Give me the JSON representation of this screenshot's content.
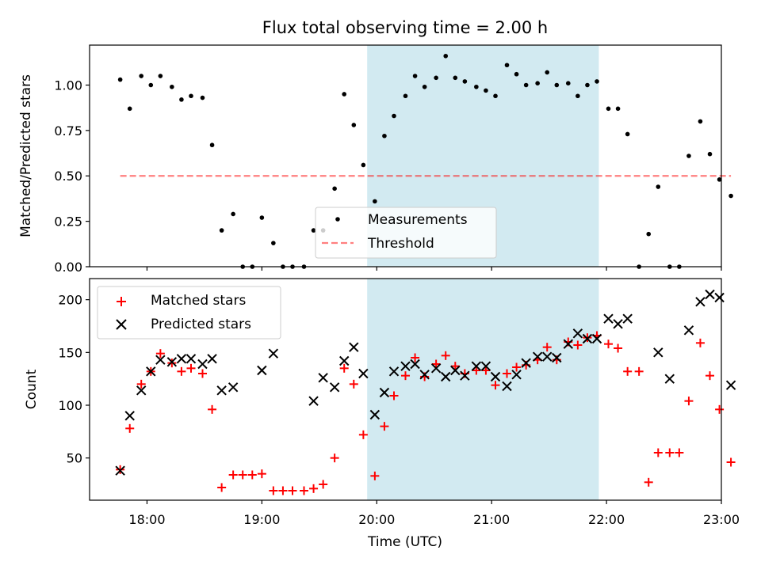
{
  "title": "Flux total observing time = 2.00 h",
  "colors": {
    "highlight": "#add8e6",
    "threshold": "#ff0000",
    "measurements": "#000000",
    "matched": "#ff0000",
    "predicted": "#000000"
  },
  "chart_data": [
    {
      "type": "scatter",
      "ylabel": "Matched/Predicted stars",
      "xlim": [
        17.5,
        23.0
      ],
      "ylim": [
        0,
        1.22
      ],
      "yticks": [
        {
          "value": 0.0,
          "label": "0.00"
        },
        {
          "value": 0.25,
          "label": "0.25"
        },
        {
          "value": 0.5,
          "label": "0.50"
        },
        {
          "value": 0.75,
          "label": "0.75"
        },
        {
          "value": 1.0,
          "label": "1.00"
        }
      ],
      "highlight_span": [
        "19:55",
        "21:56"
      ],
      "legend": {
        "placement": "bottom-center",
        "entries": [
          "Measurements",
          "Threshold"
        ]
      },
      "series": [
        {
          "name": "Measurements",
          "marker": "dot",
          "points": [
            [
              "17:46",
              1.03
            ],
            [
              "17:51",
              0.87
            ],
            [
              "17:57",
              1.05
            ],
            [
              "18:02",
              1.0
            ],
            [
              "18:07",
              1.05
            ],
            [
              "18:13",
              0.99
            ],
            [
              "18:18",
              0.92
            ],
            [
              "18:23",
              0.94
            ],
            [
              "18:29",
              0.93
            ],
            [
              "18:34",
              0.67
            ],
            [
              "18:39",
              0.2
            ],
            [
              "18:45",
              0.29
            ],
            [
              "18:50",
              0.0
            ],
            [
              "18:55",
              0.0
            ],
            [
              "19:00",
              0.27
            ],
            [
              "19:06",
              0.13
            ],
            [
              "19:11",
              0.0
            ],
            [
              "19:16",
              0.0
            ],
            [
              "19:22",
              0.0
            ],
            [
              "19:27",
              0.2
            ],
            [
              "19:32",
              0.2
            ],
            [
              "19:38",
              0.43
            ],
            [
              "19:43",
              0.95
            ],
            [
              "19:48",
              0.78
            ],
            [
              "19:53",
              0.56
            ],
            [
              "19:59",
              0.36
            ],
            [
              "20:04",
              0.72
            ],
            [
              "20:09",
              0.83
            ],
            [
              "20:15",
              0.94
            ],
            [
              "20:20",
              1.05
            ],
            [
              "20:25",
              0.99
            ],
            [
              "20:31",
              1.04
            ],
            [
              "20:36",
              1.16
            ],
            [
              "20:41",
              1.04
            ],
            [
              "20:46",
              1.02
            ],
            [
              "20:52",
              0.99
            ],
            [
              "20:57",
              0.97
            ],
            [
              "21:02",
              0.94
            ],
            [
              "21:08",
              1.11
            ],
            [
              "21:13",
              1.06
            ],
            [
              "21:18",
              1.0
            ],
            [
              "21:24",
              1.01
            ],
            [
              "21:29",
              1.07
            ],
            [
              "21:34",
              1.0
            ],
            [
              "21:40",
              1.01
            ],
            [
              "21:45",
              0.94
            ],
            [
              "21:50",
              1.0
            ],
            [
              "21:55",
              1.02
            ],
            [
              "22:01",
              0.87
            ],
            [
              "22:06",
              0.87
            ],
            [
              "22:11",
              0.73
            ],
            [
              "22:17",
              0.0
            ],
            [
              "22:22",
              0.18
            ],
            [
              "22:27",
              0.44
            ],
            [
              "22:33",
              0.0
            ],
            [
              "22:38",
              0.0
            ],
            [
              "22:43",
              0.61
            ],
            [
              "22:49",
              0.8
            ],
            [
              "22:54",
              0.62
            ],
            [
              "22:59",
              0.48
            ],
            [
              "23:05",
              0.39
            ]
          ]
        },
        {
          "name": "Threshold",
          "marker": "dashed-line",
          "points": [
            [
              "17:46",
              0.5
            ],
            [
              "23:05",
              0.5
            ]
          ]
        }
      ]
    },
    {
      "type": "scatter",
      "ylabel": "Count",
      "xlabel": "Time (UTC)",
      "xlim": [
        17.5,
        23.0
      ],
      "ylim": [
        10,
        220
      ],
      "yticks": [
        {
          "value": 50,
          "label": "50"
        },
        {
          "value": 100,
          "label": "100"
        },
        {
          "value": 150,
          "label": "150"
        },
        {
          "value": 200,
          "label": "200"
        }
      ],
      "xticks": [
        {
          "value": 18,
          "label": "18:00"
        },
        {
          "value": 19,
          "label": "19:00"
        },
        {
          "value": 20,
          "label": "20:00"
        },
        {
          "value": 21,
          "label": "21:00"
        },
        {
          "value": 22,
          "label": "22:00"
        },
        {
          "value": 23,
          "label": "23:00"
        }
      ],
      "highlight_span": [
        "19:55",
        "21:56"
      ],
      "legend": {
        "placement": "top-left",
        "entries": [
          "Matched stars",
          "Predicted stars"
        ]
      },
      "series": [
        {
          "name": "Matched stars",
          "marker": "plus",
          "points": [
            [
              "17:46",
              39
            ],
            [
              "17:51",
              78
            ],
            [
              "17:57",
              120
            ],
            [
              "18:02",
              132
            ],
            [
              "18:07",
              149
            ],
            [
              "18:13",
              140
            ],
            [
              "18:18",
              132
            ],
            [
              "18:23",
              135
            ],
            [
              "18:29",
              130
            ],
            [
              "18:34",
              96
            ],
            [
              "18:39",
              22
            ],
            [
              "18:45",
              34
            ],
            [
              "18:50",
              34
            ],
            [
              "18:55",
              34
            ],
            [
              "19:00",
              35
            ],
            [
              "19:06",
              19
            ],
            [
              "19:11",
              19
            ],
            [
              "19:16",
              19
            ],
            [
              "19:22",
              19
            ],
            [
              "19:27",
              21
            ],
            [
              "19:32",
              25
            ],
            [
              "19:38",
              50
            ],
            [
              "19:43",
              135
            ],
            [
              "19:48",
              120
            ],
            [
              "19:53",
              72
            ],
            [
              "19:59",
              33
            ],
            [
              "20:04",
              80
            ],
            [
              "20:09",
              109
            ],
            [
              "20:15",
              128
            ],
            [
              "20:20",
              145
            ],
            [
              "20:25",
              127
            ],
            [
              "20:31",
              139
            ],
            [
              "20:36",
              147
            ],
            [
              "20:41",
              137
            ],
            [
              "20:46",
              130
            ],
            [
              "20:52",
              133
            ],
            [
              "20:57",
              133
            ],
            [
              "21:02",
              119
            ],
            [
              "21:08",
              130
            ],
            [
              "21:13",
              136
            ],
            [
              "21:18",
              138
            ],
            [
              "21:24",
              143
            ],
            [
              "21:29",
              155
            ],
            [
              "21:34",
              143
            ],
            [
              "21:40",
              160
            ],
            [
              "21:45",
              157
            ],
            [
              "21:50",
              164
            ],
            [
              "21:55",
              166
            ],
            [
              "22:01",
              158
            ],
            [
              "22:06",
              154
            ],
            [
              "22:11",
              132
            ],
            [
              "22:17",
              132
            ],
            [
              "22:22",
              27
            ],
            [
              "22:27",
              55
            ],
            [
              "22:33",
              55
            ],
            [
              "22:38",
              55
            ],
            [
              "22:43",
              104
            ],
            [
              "22:49",
              159
            ],
            [
              "22:54",
              128
            ],
            [
              "22:59",
              96
            ],
            [
              "23:05",
              46
            ]
          ]
        },
        {
          "name": "Predicted stars",
          "marker": "x",
          "points": [
            [
              "17:46",
              38
            ],
            [
              "17:51",
              90
            ],
            [
              "17:57",
              114
            ],
            [
              "18:02",
              132
            ],
            [
              "18:07",
              143
            ],
            [
              "18:13",
              141
            ],
            [
              "18:18",
              144
            ],
            [
              "18:23",
              144
            ],
            [
              "18:29",
              139
            ],
            [
              "18:34",
              144
            ],
            [
              "18:39",
              114
            ],
            [
              "18:45",
              117
            ],
            [
              "19:00",
              133
            ],
            [
              "19:06",
              149
            ],
            [
              "19:27",
              104
            ],
            [
              "19:32",
              126
            ],
            [
              "19:38",
              117
            ],
            [
              "19:43",
              142
            ],
            [
              "19:48",
              155
            ],
            [
              "19:53",
              130
            ],
            [
              "19:59",
              91
            ],
            [
              "20:04",
              112
            ],
            [
              "20:09",
              132
            ],
            [
              "20:15",
              137
            ],
            [
              "20:20",
              139
            ],
            [
              "20:25",
              129
            ],
            [
              "20:31",
              135
            ],
            [
              "20:36",
              127
            ],
            [
              "20:41",
              133
            ],
            [
              "20:46",
              128
            ],
            [
              "20:52",
              137
            ],
            [
              "20:57",
              137
            ],
            [
              "21:02",
              127
            ],
            [
              "21:08",
              118
            ],
            [
              "21:13",
              129
            ],
            [
              "21:18",
              140
            ],
            [
              "21:24",
              146
            ],
            [
              "21:29",
              146
            ],
            [
              "21:34",
              145
            ],
            [
              "21:40",
              158
            ],
            [
              "21:45",
              168
            ],
            [
              "21:50",
              163
            ],
            [
              "21:55",
              163
            ],
            [
              "22:01",
              182
            ],
            [
              "22:06",
              177
            ],
            [
              "22:11",
              182
            ],
            [
              "22:27",
              150
            ],
            [
              "22:33",
              125
            ],
            [
              "22:43",
              171
            ],
            [
              "22:49",
              198
            ],
            [
              "22:54",
              205
            ],
            [
              "22:59",
              202
            ],
            [
              "23:05",
              119
            ]
          ]
        }
      ]
    }
  ]
}
